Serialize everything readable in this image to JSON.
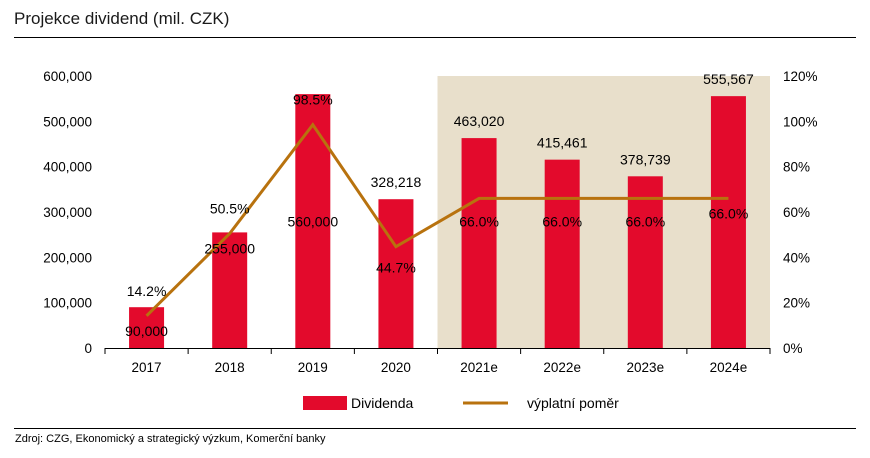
{
  "header": {
    "title": "Projekce dividend (mil. CZK)"
  },
  "footer": {
    "source": "Zdroj: CZG, Ekonomický a strategický výzkum, Komerční banky"
  },
  "colors": {
    "bar": "#e30a2c",
    "line": "#b8720e",
    "forecast_band": "#e8dfcb"
  },
  "chart_data": {
    "type": "bar",
    "title": "Projekce dividend (mil. CZK)",
    "categories": [
      "2017",
      "2018",
      "2019",
      "2020",
      "2021e",
      "2022e",
      "2023e",
      "2024e"
    ],
    "series": [
      {
        "name": "Dividenda",
        "type": "bar",
        "axis": "left",
        "values": [
          90000,
          255000,
          560000,
          328218,
          463020,
          415461,
          378739,
          555567
        ],
        "labels": [
          "90,000",
          "255,000",
          "560,000",
          "328,218",
          "463,020",
          "415,461",
          "378,739",
          "555,567"
        ]
      },
      {
        "name": "výplatní poměr",
        "type": "line",
        "axis": "right",
        "values": [
          14.2,
          50.5,
          98.5,
          44.7,
          66.0,
          66.0,
          66.0,
          66.0
        ],
        "labels": [
          "14.2%",
          "50.5%",
          "98.5%",
          "44.7%",
          "66.0%",
          "66.0%",
          "66.0%",
          "66.0%"
        ]
      }
    ],
    "y_left": {
      "min": 0,
      "max": 600000,
      "ticks": [
        "0",
        "100,000",
        "200,000",
        "300,000",
        "400,000",
        "500,000",
        "600,000"
      ]
    },
    "y_right": {
      "min": 0,
      "max": 120,
      "ticks": [
        "0%",
        "20%",
        "40%",
        "60%",
        "80%",
        "100%",
        "120%"
      ]
    },
    "forecast_shading": {
      "from": "2021e",
      "to": "2024e"
    },
    "legend": {
      "position": "bottom",
      "items": [
        "Dividenda",
        "výplatní poměr"
      ]
    },
    "grid": false
  }
}
